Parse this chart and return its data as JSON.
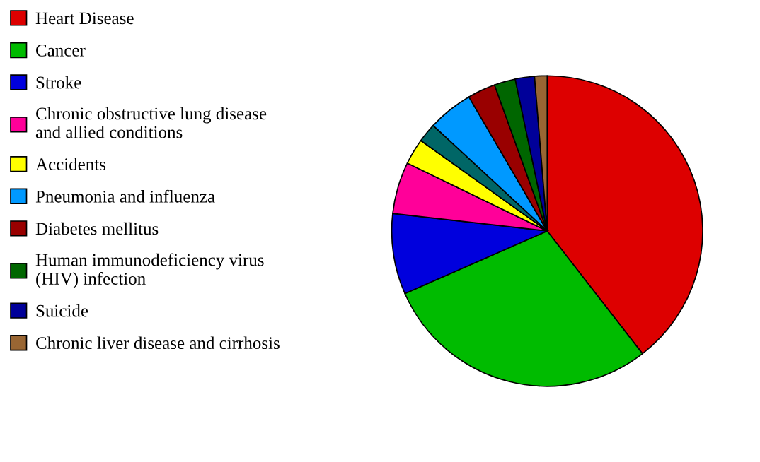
{
  "chart_data": {
    "type": "pie",
    "categories": [
      "Heart Disease",
      "Cancer",
      "Stroke",
      "Chronic obstructive lung disease\nand allied conditions",
      "Accidents",
      null,
      "Pneumonia and influenza",
      "Diabetes mellitus",
      "Human immunodeficiency virus\n(HIV) infection",
      "Suicide",
      "Chronic liver disease and cirrhosis"
    ],
    "values": [
      39.5,
      28.9,
      8.4,
      5.4,
      2.7,
      2.0,
      4.7,
      2.9,
      2.2,
      2.0,
      1.3
    ],
    "colors": [
      "#dd0000",
      "#00bb00",
      "#0000dd",
      "#ff0099",
      "#ffff00",
      "#006666",
      "#0099ff",
      "#990000",
      "#006600",
      "#000099",
      "#996633"
    ],
    "legend": "left"
  }
}
